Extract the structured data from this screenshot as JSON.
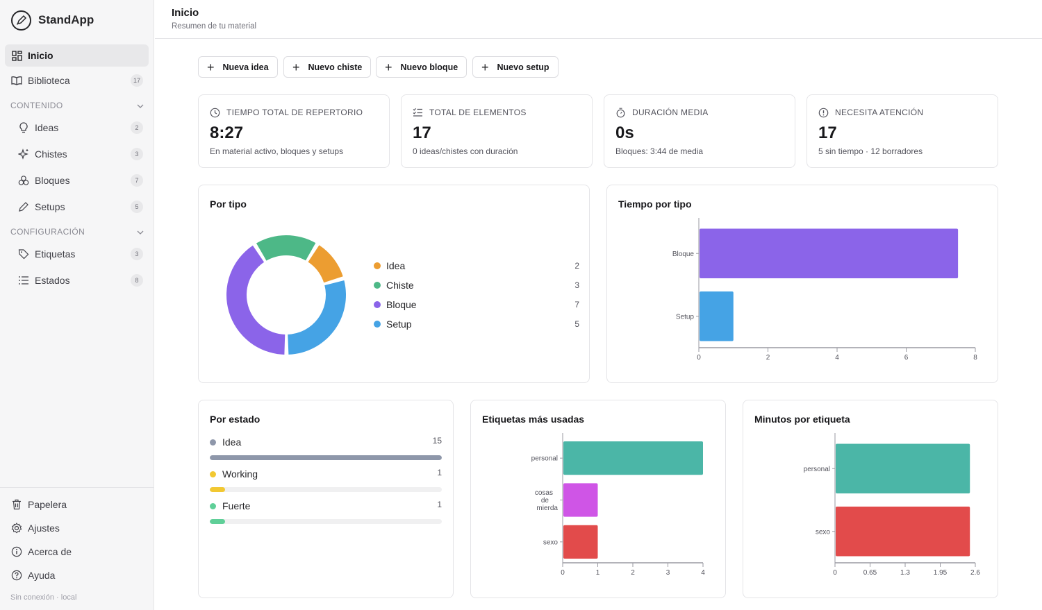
{
  "app": {
    "name": "StandApp"
  },
  "sidebar": {
    "nav": [
      {
        "label": "Inicio",
        "icon": "dashboard-icon",
        "active": true
      },
      {
        "label": "Biblioteca",
        "icon": "book-icon",
        "count": "17"
      }
    ],
    "content_section": {
      "label": "CONTENIDO",
      "items": [
        {
          "label": "Ideas",
          "icon": "lightbulb-icon",
          "count": "2"
        },
        {
          "label": "Chistes",
          "icon": "sparkles-icon",
          "count": "3"
        },
        {
          "label": "Bloques",
          "icon": "blocks-icon",
          "count": "7"
        },
        {
          "label": "Setups",
          "icon": "pen-icon",
          "count": "5"
        }
      ]
    },
    "config_section": {
      "label": "CONFIGURACIÓN",
      "items": [
        {
          "label": "Etiquetas",
          "icon": "tag-icon",
          "count": "3"
        },
        {
          "label": "Estados",
          "icon": "list-icon",
          "count": "8"
        }
      ]
    },
    "bottom": [
      {
        "label": "Papelera",
        "icon": "trash-icon"
      },
      {
        "label": "Ajustes",
        "icon": "gear-icon"
      },
      {
        "label": "Acerca de",
        "icon": "info-icon"
      },
      {
        "label": "Ayuda",
        "icon": "help-icon"
      }
    ],
    "status": "Sin conexión · local"
  },
  "header": {
    "title": "Inicio",
    "subtitle": "Resumen de tu material"
  },
  "actions": [
    "Nueva idea",
    "Nuevo chiste",
    "Nuevo bloque",
    "Nuevo setup"
  ],
  "stats": [
    {
      "label": "TIEMPO TOTAL DE REPERTORIO",
      "value": "8:27",
      "sub": "En material activo, bloques y setups",
      "icon": "clock-icon"
    },
    {
      "label": "TOTAL DE ELEMENTOS",
      "value": "17",
      "sub": "0 ideas/chistes con duración",
      "icon": "checklist-icon"
    },
    {
      "label": "DURACIÓN MEDIA",
      "value": "0s",
      "sub": "Bloques: 3:44 de media",
      "icon": "timer-icon"
    },
    {
      "label": "NECESITA ATENCIÓN",
      "value": "17",
      "sub": "5 sin tiempo · 12 borradores",
      "icon": "alert-icon"
    }
  ],
  "panels": {
    "by_type": "Por tipo",
    "time_by_type": "Tiempo por tipo",
    "by_status": "Por estado",
    "top_tags": "Etiquetas más usadas",
    "minutes_by_tag": "Minutos por etiqueta"
  },
  "status_rows": [
    {
      "label": "Idea",
      "count": "15",
      "fraction": 1.0,
      "color": "#8e97aa"
    },
    {
      "label": "Working",
      "count": "1",
      "fraction": 0.067,
      "color": "#f2c832"
    },
    {
      "label": "Fuerte",
      "count": "1",
      "fraction": 0.067,
      "color": "#5fcf98"
    }
  ],
  "chart_data": [
    {
      "type": "pie",
      "title": "Por tipo",
      "categories": [
        "Idea",
        "Chiste",
        "Bloque",
        "Setup"
      ],
      "values": [
        2,
        3,
        7,
        5
      ],
      "colors": [
        "#ec9d31",
        "#4db887",
        "#8b64e9",
        "#45a3e5"
      ],
      "donut": true
    },
    {
      "type": "bar",
      "orientation": "horizontal",
      "title": "Tiempo por tipo",
      "categories": [
        "Bloque",
        "Setup"
      ],
      "values": [
        7.5,
        1.0
      ],
      "colors": [
        "#8b64e9",
        "#45a3e5"
      ],
      "xlim": [
        0,
        8
      ],
      "xticks": [
        "0",
        "2",
        "4",
        "6",
        "8"
      ]
    },
    {
      "type": "bar",
      "orientation": "horizontal",
      "title": "Etiquetas más usadas",
      "categories": [
        "personal",
        "cosas de mierda",
        "sexo"
      ],
      "values": [
        4,
        1,
        1
      ],
      "colors": [
        "#4bb6a7",
        "#cf55e6",
        "#e24b4b"
      ],
      "xlim": [
        0,
        4
      ],
      "xticks": [
        "0",
        "1",
        "2",
        "3",
        "4"
      ]
    },
    {
      "type": "bar",
      "orientation": "horizontal",
      "title": "Minutos por etiqueta",
      "categories": [
        "personal",
        "sexo"
      ],
      "values": [
        2.5,
        2.5
      ],
      "colors": [
        "#4bb6a7",
        "#e24b4b"
      ],
      "xlim": [
        0,
        2.6
      ],
      "xticks": [
        "0",
        "0.65",
        "1.3",
        "1.95",
        "2.6"
      ]
    }
  ]
}
